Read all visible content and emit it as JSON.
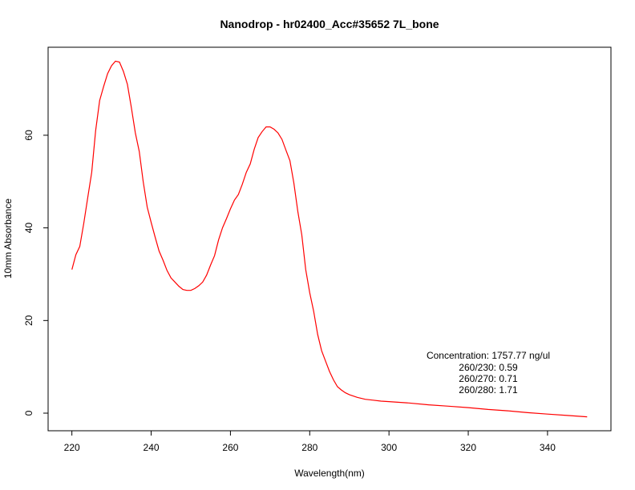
{
  "chart_data": {
    "type": "line",
    "title": "Nanodrop - hr02400_Acc#35652 7L_bone",
    "xlabel": "Wavelength(nm)",
    "ylabel": "10mm Absorbance",
    "xlim": [
      214,
      356
    ],
    "ylim": [
      -3.8,
      79
    ],
    "xticks": [
      220,
      240,
      260,
      280,
      300,
      320,
      340
    ],
    "yticks": [
      0,
      20,
      40,
      60
    ],
    "grid": false,
    "series": [
      {
        "color": "#ff0000",
        "x": [
          220,
          221,
          222,
          223,
          224,
          225,
          226,
          227,
          228,
          229,
          230,
          231,
          232,
          233,
          234,
          235,
          236,
          237,
          238,
          239,
          240,
          241,
          242,
          243,
          244,
          245,
          246,
          247,
          248,
          249,
          250,
          251,
          252,
          253,
          254,
          255,
          256,
          257,
          258,
          259,
          260,
          261,
          262,
          263,
          264,
          265,
          266,
          267,
          268,
          269,
          270,
          271,
          272,
          273,
          274,
          275,
          276,
          277,
          278,
          279,
          280,
          281,
          282,
          283,
          284,
          285,
          286,
          287,
          288,
          289,
          290,
          292,
          294,
          296,
          298,
          300,
          305,
          310,
          315,
          320,
          325,
          330,
          335,
          340,
          345,
          350
        ],
        "y": [
          31,
          34.2,
          36,
          41,
          46.5,
          52,
          61,
          67.5,
          70.5,
          73.3,
          75,
          76,
          75.8,
          73.8,
          71,
          66,
          60.5,
          56.5,
          50,
          44.5,
          41.2,
          38,
          35,
          33,
          30.8,
          29.2,
          28.3,
          27.4,
          26.7,
          26.5,
          26.5,
          26.9,
          27.5,
          28.3,
          29.8,
          32,
          34,
          37.4,
          40,
          42,
          44.1,
          46,
          47.2,
          49.4,
          52,
          53.8,
          57,
          59.5,
          60.8,
          61.8,
          61.8,
          61.3,
          60.5,
          59.1,
          56.8,
          54.5,
          49.7,
          43.5,
          38.5,
          31,
          26,
          22,
          17,
          13.5,
          11.2,
          9,
          7.2,
          5.7,
          5,
          4.4,
          4,
          3.4,
          3,
          2.8,
          2.6,
          2.5,
          2.2,
          1.8,
          1.5,
          1.2,
          0.8,
          0.5,
          0.1,
          -0.2,
          -0.5,
          -0.8
        ]
      }
    ],
    "annotations": [
      "Concentration: 1757.77 ng/ul",
      "260/230: 0.59",
      "260/270: 0.71",
      "260/280: 1.71"
    ]
  }
}
